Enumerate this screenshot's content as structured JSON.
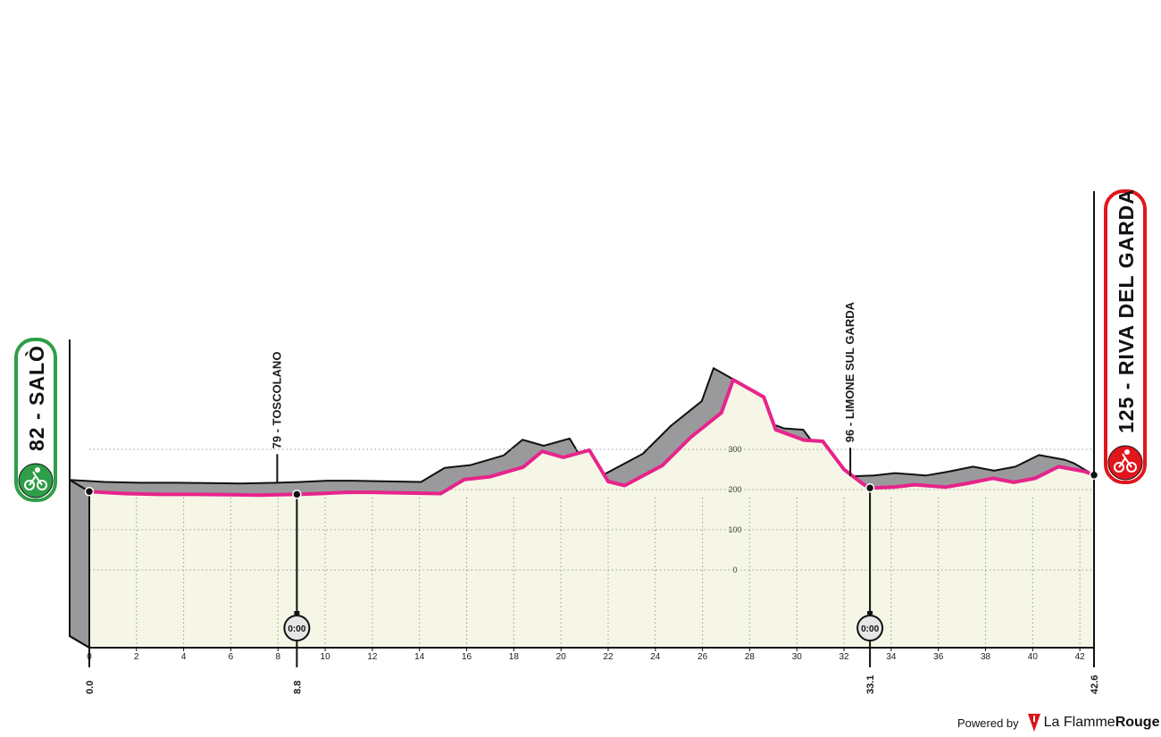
{
  "stage": {
    "start_badge": "82 - SALÒ",
    "finish_badge": "125 - RIVA DEL GARDA",
    "start_icon": "cyclist-icon",
    "finish_icon": "cyclist-icon",
    "start_color": "#2e9e48",
    "finish_color": "#e1161d"
  },
  "waypoints": [
    {
      "label": "79 - TOSCOLANO"
    },
    {
      "label": "96 - LIMONE SUL GARDA"
    }
  ],
  "markers": [
    "0.0",
    "8.8",
    "33.1",
    "42.6"
  ],
  "timers": [
    "0:00",
    "0:00"
  ],
  "credit": {
    "prefix": "Powered by",
    "brand_light": "La Flamme",
    "brand_bold": "Rouge"
  },
  "colors": {
    "route_line": "#e6248b",
    "terrain_side": "#9a9a9c",
    "terrain_fill": "#f6f6e6"
  },
  "chart_data": {
    "type": "area",
    "x_ticks": [
      "0",
      "2",
      "4",
      "6",
      "8",
      "10",
      "12",
      "14",
      "16",
      "18",
      "20",
      "22",
      "24",
      "26",
      "28",
      "30",
      "32",
      "34",
      "36",
      "38",
      "40",
      "42"
    ],
    "elevation_ticks": [
      "300",
      "200",
      "100",
      "0"
    ],
    "x": [
      0,
      1.5,
      3,
      4.5,
      6.3,
      7.2,
      8.8,
      9.8,
      10.9,
      12,
      13,
      14.9,
      15.9,
      17,
      18.4,
      19.2,
      20.1,
      21.2,
      22,
      22.7,
      24.3,
      25.5,
      26.8,
      27.3,
      28.6,
      29.1,
      30.3,
      31.1,
      32,
      32.8,
      33.1,
      34.1,
      35,
      36.3,
      37.2,
      38.3,
      39.2,
      40.1,
      41.1,
      42.2,
      42.6
    ],
    "y": [
      195,
      190,
      188,
      188,
      187,
      186,
      188,
      190,
      193,
      193,
      192,
      190,
      225,
      232,
      256,
      295,
      280,
      298,
      220,
      210,
      260,
      330,
      391,
      473,
      430,
      349,
      323,
      320,
      250,
      214,
      204,
      206,
      212,
      206,
      215,
      228,
      218,
      228,
      257,
      245,
      236
    ],
    "xlim": [
      0,
      42.6
    ],
    "grid": true
  }
}
